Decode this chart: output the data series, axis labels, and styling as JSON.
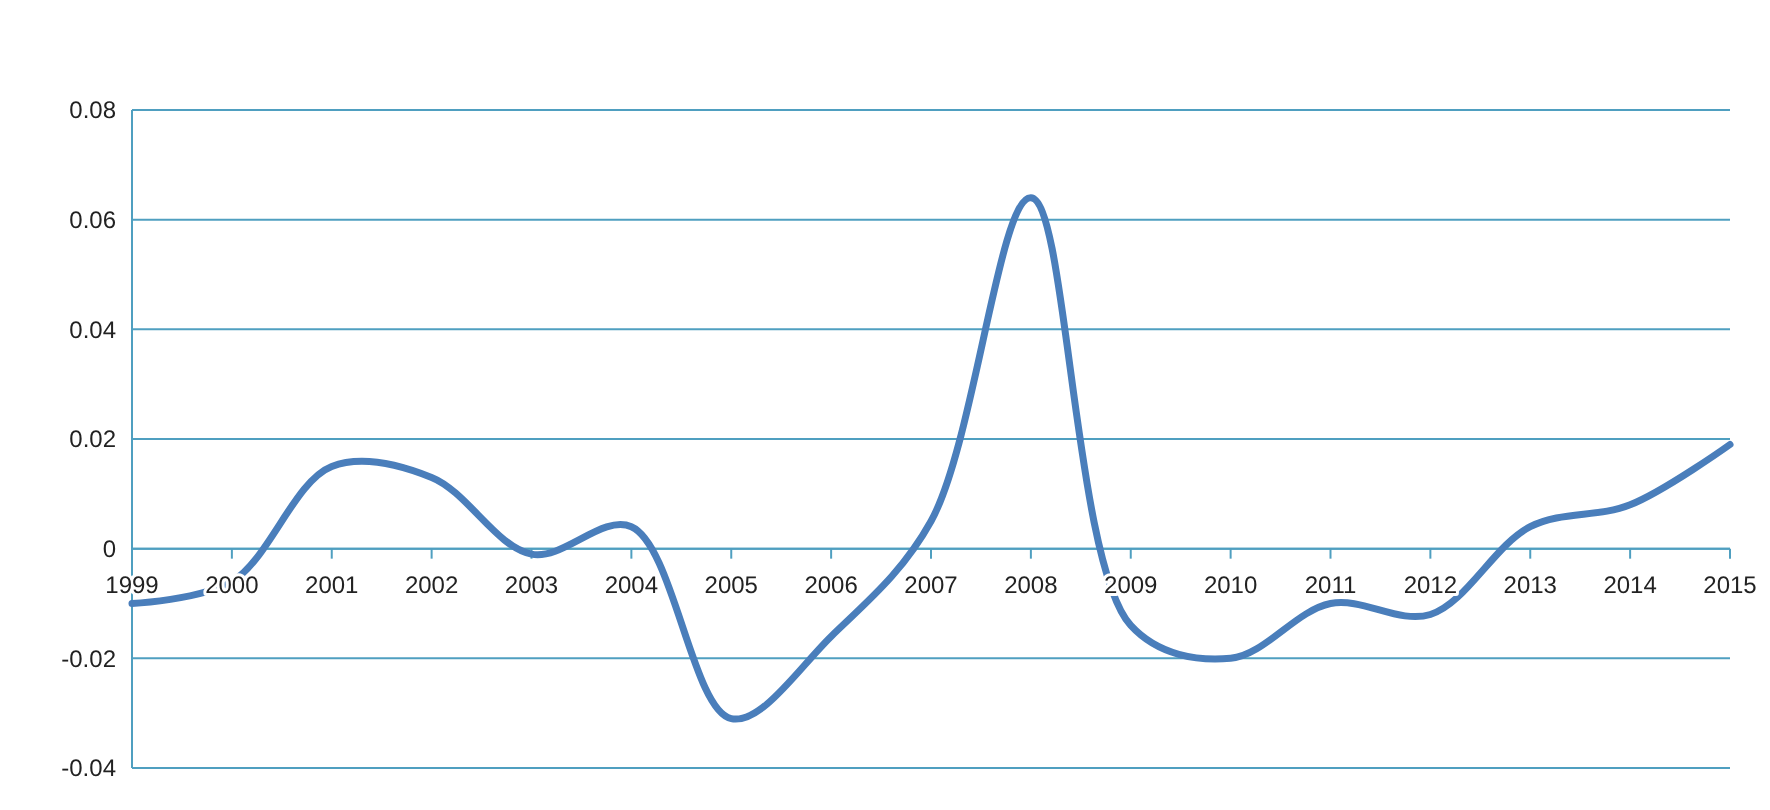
{
  "chart_data": {
    "type": "line",
    "categories": [
      "1999",
      "2000",
      "2001",
      "2002",
      "2003",
      "2004",
      "2005",
      "2006",
      "2007",
      "2008",
      "2009",
      "2010",
      "2011",
      "2012",
      "2013",
      "2014",
      "2015"
    ],
    "series": [
      {
        "color": "#4a7ebb",
        "values": [
          -0.01,
          -0.006,
          0.015,
          0.013,
          -0.001,
          0.004,
          -0.031,
          -0.016,
          0.005,
          0.064,
          -0.014,
          -0.02,
          -0.01,
          -0.012,
          0.004,
          0.008,
          0.019
        ]
      }
    ],
    "ylim": [
      -0.04,
      0.08
    ],
    "yticks": [
      -0.04,
      -0.02,
      0,
      0.02,
      0.04,
      0.06,
      0.08
    ],
    "grid": "y",
    "marker": "none",
    "line_style": "solid"
  }
}
